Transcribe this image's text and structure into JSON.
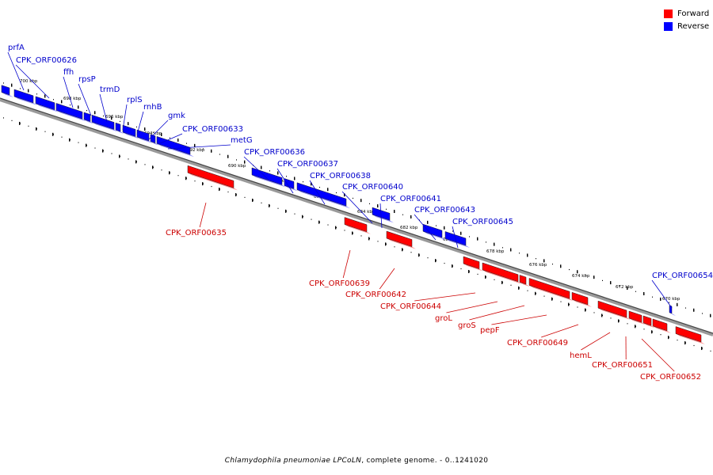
{
  "legend": {
    "forward_label": "Forward",
    "forward_color": "#ff0000",
    "reverse_label": "Reverse",
    "reverse_color": "#0000ff"
  },
  "caption": {
    "organism": "Chlamydophila pneumoniae LPCoLN",
    "suffix": ", complete genome. - 0..1241020"
  },
  "axis_ticks": [
    "700 kbp",
    "698 kbp",
    "696 kbp",
    "694 kbp",
    "692 kbp",
    "690 kbp",
    "688 kbp",
    "686 kbp",
    "684 kbp",
    "682 kbp",
    "680 kbp",
    "678 kbp",
    "676 kbp",
    "674 kbp",
    "672 kbp",
    "670 kbp"
  ],
  "reverse_genes": [
    "prfA",
    "CPK_ORF00626",
    "ffh",
    "rpsP",
    "trmD",
    "rplS",
    "rnhB",
    "gmk",
    "CPK_ORF00633",
    "metG",
    "CPK_ORF00636",
    "CPK_ORF00637",
    "CPK_ORF00638",
    "CPK_ORF00640",
    "CPK_ORF00641",
    "CPK_ORF00643",
    "CPK_ORF00645",
    "CPK_ORF00654"
  ],
  "forward_genes": [
    "CPK_ORF00635",
    "CPK_ORF00639",
    "CPK_ORF00642",
    "CPK_ORF00644",
    "groL",
    "groS",
    "pepF",
    "CPK_ORF00649",
    "hemL",
    "CPK_ORF00651",
    "CPK_ORF00652"
  ]
}
